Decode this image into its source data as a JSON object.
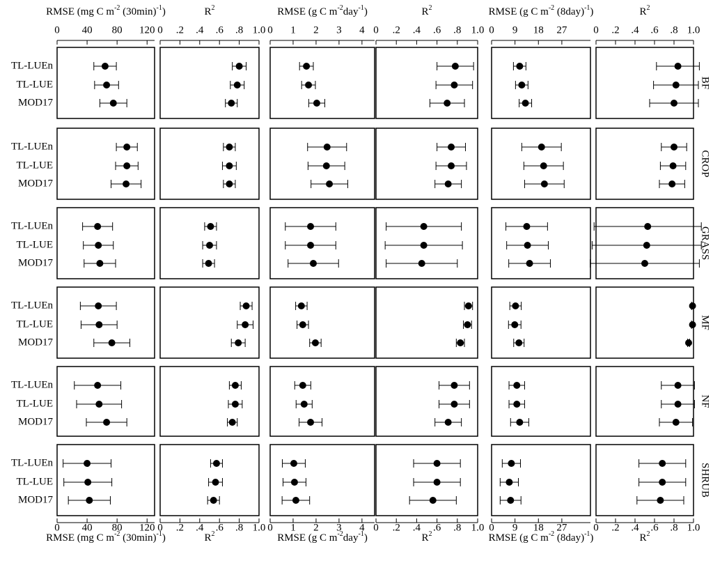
{
  "chart_data": {
    "type": "dot-errorbar-grid",
    "categories": [
      "TL-LUEn",
      "TL-LUE",
      "MOD17"
    ],
    "groups": [
      "BF",
      "CROP",
      "GRASS",
      "MF",
      "NF",
      "SHRUB"
    ],
    "columns": [
      {
        "xlabel": [
          "RMSE (mg C m",
          "-2",
          " (30min)",
          "-1",
          ")"
        ],
        "xlim": [
          0,
          130
        ],
        "xticks": [
          0,
          40,
          80,
          120
        ],
        "values": [
          [
            64,
            66,
            75
          ],
          [
            93,
            93,
            92
          ],
          [
            54,
            55,
            57
          ],
          [
            55,
            56,
            73
          ],
          [
            54,
            56,
            66
          ],
          [
            40,
            41,
            43
          ]
        ],
        "errors": [
          [
            15,
            16,
            18
          ],
          [
            14,
            15,
            20
          ],
          [
            20,
            20,
            21
          ],
          [
            24,
            24,
            24
          ],
          [
            31,
            30,
            27
          ],
          [
            32,
            32,
            28
          ]
        ]
      },
      {
        "xlabel": [
          "R",
          "2"
        ],
        "xlim": [
          0,
          1
        ],
        "xticks": [
          0,
          {
            "value": 0.2,
            "label": ".2"
          },
          {
            "value": 0.4,
            "label": ".4"
          },
          {
            "value": 0.6,
            "label": ".6"
          },
          {
            "value": 0.8,
            "label": ".8"
          },
          {
            "value": 1,
            "label": "1.0"
          }
        ],
        "values": [
          [
            0.8,
            0.78,
            0.72
          ],
          [
            0.7,
            0.7,
            0.7
          ],
          [
            0.51,
            0.5,
            0.49
          ],
          [
            0.87,
            0.86,
            0.79
          ],
          [
            0.76,
            0.76,
            0.73
          ],
          [
            0.57,
            0.56,
            0.54
          ]
        ],
        "errors": [
          [
            0.07,
            0.07,
            0.06
          ],
          [
            0.06,
            0.07,
            0.06
          ],
          [
            0.06,
            0.07,
            0.06
          ],
          [
            0.06,
            0.08,
            0.07
          ],
          [
            0.06,
            0.07,
            0.05
          ],
          [
            0.06,
            0.07,
            0.06
          ]
        ]
      },
      {
        "xlabel": [
          "RMSE (g C m",
          "-2",
          "day",
          "-1",
          ")"
        ],
        "xlim": [
          0,
          4.55
        ],
        "xticks": [
          0,
          1,
          2,
          3,
          4
        ],
        "values": [
          [
            1.58,
            1.67,
            2.03
          ],
          [
            2.48,
            2.45,
            2.58
          ],
          [
            1.76,
            1.76,
            1.88
          ],
          [
            1.36,
            1.42,
            1.97
          ],
          [
            1.42,
            1.48,
            1.76
          ],
          [
            1.03,
            1.06,
            1.12
          ]
        ],
        "errors": [
          [
            0.3,
            0.3,
            0.35
          ],
          [
            0.85,
            0.8,
            0.8
          ],
          [
            1.1,
            1.1,
            1.1
          ],
          [
            0.25,
            0.25,
            0.25
          ],
          [
            0.35,
            0.35,
            0.5
          ],
          [
            0.5,
            0.5,
            0.6
          ]
        ]
      },
      {
        "xlabel": [
          "R",
          "2"
        ],
        "xlim": [
          0,
          1
        ],
        "xticks": [
          0,
          {
            "value": 0.2,
            "label": ".2"
          },
          {
            "value": 0.4,
            "label": ".4"
          },
          {
            "value": 0.6,
            "label": ".6"
          },
          {
            "value": 0.8,
            "label": ".8"
          },
          {
            "value": 1,
            "label": "1.0"
          }
        ],
        "values": [
          [
            0.78,
            0.77,
            0.7
          ],
          [
            0.74,
            0.74,
            0.71
          ],
          [
            0.47,
            0.47,
            0.45
          ],
          [
            0.91,
            0.9,
            0.83
          ],
          [
            0.77,
            0.77,
            0.71
          ],
          [
            0.6,
            0.6,
            0.56
          ]
        ],
        "errors": [
          [
            0.18,
            0.18,
            0.17
          ],
          [
            0.14,
            0.15,
            0.13
          ],
          [
            0.37,
            0.38,
            0.35
          ],
          [
            0.04,
            0.04,
            0.04
          ],
          [
            0.15,
            0.15,
            0.13
          ],
          [
            0.23,
            0.23,
            0.23
          ]
        ]
      },
      {
        "xlabel": [
          "RMSE (g C m",
          "-2",
          " (8day)",
          "-1",
          ")"
        ],
        "xlim": [
          0,
          38
        ],
        "xticks": [
          0,
          9,
          18,
          27
        ],
        "values": [
          [
            10.8,
            11.6,
            13.0
          ],
          [
            19.2,
            20.0,
            20.3
          ],
          [
            13.5,
            13.8,
            14.6
          ],
          [
            9.2,
            8.9,
            10.5
          ],
          [
            9.7,
            9.7,
            10.8
          ],
          [
            7.6,
            6.8,
            7.3
          ]
        ],
        "errors": [
          [
            2.4,
            2.4,
            2.4
          ],
          [
            7.6,
            7.6,
            7.6
          ],
          [
            8,
            8,
            8
          ],
          [
            2.2,
            2.4,
            2
          ],
          [
            3,
            3,
            3.5
          ],
          [
            3.5,
            3.5,
            4
          ]
        ]
      },
      {
        "xlabel": [
          "R",
          "2"
        ],
        "xlim": [
          0,
          1
        ],
        "xticks": [
          0,
          {
            "value": 0.2,
            "label": ".2"
          },
          {
            "value": 0.4,
            "label": ".4"
          },
          {
            "value": 0.6,
            "label": ".6"
          },
          {
            "value": 0.8,
            "label": ".8"
          },
          {
            "value": 1,
            "label": "1.0"
          }
        ],
        "values": [
          [
            0.84,
            0.82,
            0.8
          ],
          [
            0.8,
            0.79,
            0.78
          ],
          [
            0.53,
            0.52,
            0.5
          ],
          [
            0.99,
            0.99,
            0.95
          ],
          [
            0.84,
            0.84,
            0.82
          ],
          [
            0.68,
            0.68,
            0.66
          ]
        ],
        "errors": [
          [
            0.22,
            0.23,
            0.25
          ],
          [
            0.13,
            0.13,
            0.13
          ],
          [
            0.55,
            0.56,
            0.56
          ],
          [
            0.01,
            0.01,
            0.01
          ],
          [
            0.17,
            0.17,
            0.17
          ],
          [
            0.24,
            0.24,
            0.24
          ]
        ]
      }
    ]
  }
}
